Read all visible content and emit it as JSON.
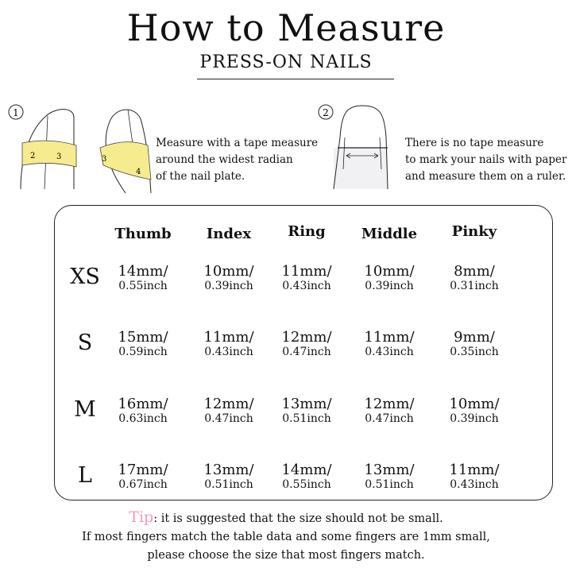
{
  "title": "How to Measure",
  "subtitle": "PRESS-ON NAILS",
  "step1": {
    "number": "1",
    "lines": [
      "Measure with a tape measure",
      "around the widest radian",
      "of the nail plate."
    ],
    "tape_color": "#f6ec8f"
  },
  "step2": {
    "number": "2",
    "lines": [
      "There is no tape measure",
      "to mark your nails with paper",
      "and measure them on a ruler."
    ]
  },
  "table": {
    "headers": [
      "Thumb",
      "Index",
      "Ring",
      "Middle",
      "Pinky"
    ],
    "rows": [
      {
        "size": "XS",
        "cells": [
          [
            "14mm/",
            "0.55inch"
          ],
          [
            "10mm/",
            "0.39inch"
          ],
          [
            "11mm/",
            "0.43inch"
          ],
          [
            "10mm/",
            "0.39inch"
          ],
          [
            "8mm/",
            "0.31inch"
          ]
        ]
      },
      {
        "size": "S",
        "cells": [
          [
            "15mm/",
            "0.59inch"
          ],
          [
            "11mm/",
            "0.43inch"
          ],
          [
            "12mm/",
            "0.47inch"
          ],
          [
            "11mm/",
            "0.43inch"
          ],
          [
            "9mm/",
            "0.35inch"
          ]
        ]
      },
      {
        "size": "M",
        "cells": [
          [
            "16mm/",
            "0.63inch"
          ],
          [
            "12mm/",
            "0.47inch"
          ],
          [
            "13mm/",
            "0.51inch"
          ],
          [
            "12mm/",
            "0.47inch"
          ],
          [
            "10mm/",
            "0.39inch"
          ]
        ]
      },
      {
        "size": "L",
        "cells": [
          [
            "17mm/",
            "0.67inch"
          ],
          [
            "13mm/",
            "0.51inch"
          ],
          [
            "14mm/",
            "0.55inch"
          ],
          [
            "13mm/",
            "0.51inch"
          ],
          [
            "11mm/",
            "0.43inch"
          ]
        ]
      }
    ]
  },
  "tip": {
    "label": "Tip",
    "line1": ": it is suggested that the size should not be small.",
    "line2": "If most fingers match the table data and some fingers are 1mm small,",
    "line3": "please choose the size that most fingers match.",
    "accent": "#f29bb4"
  }
}
